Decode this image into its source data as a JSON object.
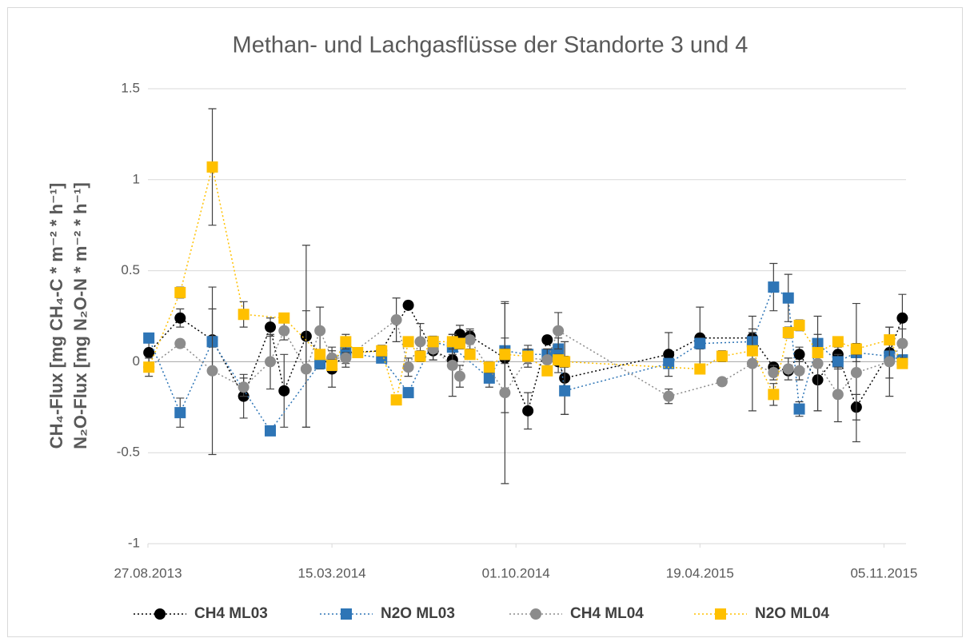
{
  "chart_data": {
    "type": "line",
    "title": "Methan- und Lachgasflüsse der Standorte 3 und 4",
    "y_label_lines": [
      "CH₄-Flux [mg CH₄-C * m⁻² * h⁻¹]",
      "N₂O-Flux [mg N₂O-N * m⁻² * h⁻¹]"
    ],
    "xlim": [
      "2013-08-27",
      "2015-11-29"
    ],
    "xticks": [
      {
        "value": "2013-08-27",
        "label": "27.08.2013"
      },
      {
        "value": "2014-03-15",
        "label": "15.03.2014"
      },
      {
        "value": "2014-10-01",
        "label": "01.10.2014"
      },
      {
        "value": "2015-04-19",
        "label": "19.04.2015"
      },
      {
        "value": "2015-11-05",
        "label": "05.11.2015"
      }
    ],
    "ylim": [
      -1,
      1.5
    ],
    "yticks": [
      -1,
      -0.5,
      0,
      0.5,
      1,
      1.5
    ],
    "grid": true,
    "legend": "bottom",
    "series": [
      {
        "name": "CH4 ML03",
        "color": "#000000",
        "marker": "circle",
        "x": [
          "2013-08-28",
          "2013-10-01",
          "2013-11-05",
          "2013-12-09",
          "2014-01-07",
          "2014-01-22",
          "2014-02-15",
          "2014-03-15",
          "2014-03-30",
          "2014-05-08",
          "2014-06-06",
          "2014-07-03",
          "2014-07-24",
          "2014-08-01",
          "2014-08-12",
          "2014-09-19",
          "2014-10-14",
          "2014-11-04",
          "2014-11-16",
          "2014-11-23",
          "2015-03-16",
          "2015-04-19",
          "2015-06-15",
          "2015-07-08",
          "2015-07-24",
          "2015-08-05",
          "2015-08-25",
          "2015-09-16",
          "2015-10-06",
          "2015-11-11",
          "2015-11-25"
        ],
        "values": [
          0.05,
          0.24,
          0.12,
          -0.19,
          0.19,
          -0.16,
          0.14,
          -0.04,
          0.05,
          0.06,
          0.31,
          0.06,
          0.01,
          0.15,
          0.14,
          0.02,
          -0.27,
          0.12,
          0.0,
          -0.09,
          0.04,
          0.13,
          0.13,
          -0.03,
          -0.05,
          0.04,
          -0.1,
          0.04,
          -0.25,
          0.05,
          0.24
        ],
        "errors": [
          0.1,
          0.05,
          0.17,
          0.12,
          0.05,
          0.2,
          0.5,
          0.1,
          0.08,
          0.03,
          0.02,
          0.05,
          0.05,
          0.05,
          0.04,
          0.3,
          0.1,
          0.02,
          0.06,
          0.2,
          0.12,
          0.17,
          0.05,
          0.02,
          0.02,
          0.04,
          0.17,
          0.04,
          0.07,
          0.14,
          0.13
        ]
      },
      {
        "name": "N2O ML03",
        "color": "#2e75b6",
        "marker": "square",
        "x": [
          "2013-08-28",
          "2013-10-01",
          "2013-11-05",
          "2014-01-07",
          "2014-03-02",
          "2014-03-30",
          "2014-05-08",
          "2014-06-06",
          "2014-07-03",
          "2014-07-24",
          "2014-09-02",
          "2014-09-19",
          "2014-10-14",
          "2014-11-04",
          "2014-11-16",
          "2014-11-23",
          "2015-03-16",
          "2015-04-19",
          "2015-06-15",
          "2015-07-08",
          "2015-07-24",
          "2015-08-05",
          "2015-08-25",
          "2015-09-16",
          "2015-10-06",
          "2015-11-11",
          "2015-11-25"
        ],
        "values": [
          0.13,
          -0.28,
          0.11,
          -0.38,
          -0.01,
          0.05,
          0.02,
          -0.17,
          0.11,
          0.08,
          -0.09,
          0.06,
          0.04,
          0.04,
          0.07,
          -0.16,
          -0.01,
          0.1,
          0.11,
          0.41,
          0.35,
          -0.26,
          0.1,
          0.0,
          0.05,
          0.03,
          0.01
        ],
        "errors": [
          0.02,
          0.08,
          0.03,
          0.01,
          0.03,
          0.02,
          0.01,
          0.02,
          0.03,
          0.04,
          0.05,
          0.07,
          0.05,
          0.03,
          0.06,
          0.13,
          0.02,
          0.03,
          0.05,
          0.13,
          0.13,
          0.04,
          0.05,
          0.04,
          0.05,
          0.03,
          0.02
        ]
      },
      {
        "name": "CH4 ML04",
        "color": "#8c8c8c",
        "marker": "circle",
        "x": [
          "2013-08-28",
          "2013-10-01",
          "2013-11-05",
          "2013-12-09",
          "2014-01-07",
          "2014-01-22",
          "2014-02-15",
          "2014-03-02",
          "2014-03-15",
          "2014-03-30",
          "2014-05-24",
          "2014-06-06",
          "2014-06-19",
          "2014-07-03",
          "2014-07-24",
          "2014-08-01",
          "2014-08-12",
          "2014-09-19",
          "2014-10-14",
          "2014-11-04",
          "2014-11-16",
          "2015-03-16",
          "2015-05-13",
          "2015-06-15",
          "2015-07-08",
          "2015-07-24",
          "2015-08-05",
          "2015-08-25",
          "2015-09-16",
          "2015-10-06",
          "2015-11-11",
          "2015-11-25"
        ],
        "values": [
          -0.03,
          0.1,
          -0.05,
          -0.14,
          0.0,
          0.17,
          -0.04,
          0.17,
          0.02,
          0.02,
          0.23,
          -0.03,
          0.11,
          0.07,
          -0.02,
          -0.08,
          0.12,
          -0.17,
          0.02,
          0.01,
          0.17,
          -0.19,
          -0.11,
          -0.01,
          -0.06,
          -0.04,
          -0.05,
          -0.01,
          -0.18,
          -0.06,
          0.0,
          0.1
        ],
        "errors": [
          0.05,
          0.02,
          0.46,
          0.05,
          0.15,
          0.05,
          0.32,
          0.13,
          0.06,
          0.03,
          0.12,
          0.05,
          0.1,
          0.06,
          0.17,
          0.06,
          0.05,
          0.5,
          0.05,
          0.06,
          0.1,
          0.04,
          0.02,
          0.26,
          0.04,
          0.06,
          0.05,
          0.26,
          0.15,
          0.38,
          0.19,
          0.08
        ]
      },
      {
        "name": "N2O ML04",
        "color": "#ffc000",
        "marker": "square",
        "x": [
          "2013-08-28",
          "2013-10-01",
          "2013-11-05",
          "2013-12-09",
          "2014-01-22",
          "2014-03-02",
          "2014-03-15",
          "2014-03-30",
          "2014-04-12",
          "2014-05-08",
          "2014-05-24",
          "2014-06-06",
          "2014-06-19",
          "2014-07-03",
          "2014-07-24",
          "2014-08-01",
          "2014-08-12",
          "2014-09-02",
          "2014-09-19",
          "2014-10-14",
          "2014-11-04",
          "2014-11-16",
          "2014-11-23",
          "2015-04-19",
          "2015-05-13",
          "2015-06-15",
          "2015-07-08",
          "2015-07-24",
          "2015-08-05",
          "2015-08-25",
          "2015-09-16",
          "2015-10-06",
          "2015-11-11",
          "2015-11-25"
        ],
        "values": [
          -0.03,
          0.38,
          1.07,
          0.26,
          0.24,
          0.04,
          -0.02,
          0.11,
          0.05,
          0.06,
          -0.21,
          0.11,
          0.03,
          0.11,
          0.11,
          0.1,
          0.04,
          -0.03,
          0.04,
          0.03,
          -0.05,
          0.01,
          0.0,
          -0.04,
          0.03,
          0.06,
          -0.18,
          0.16,
          0.2,
          0.05,
          0.11,
          0.07,
          0.12,
          -0.01
        ],
        "errors": [
          0.02,
          0.03,
          0.32,
          0.07,
          0.02,
          0.02,
          0.03,
          0.04,
          0.02,
          0.03,
          0.01,
          0.02,
          0.03,
          0.02,
          0.04,
          0.03,
          0.02,
          0.03,
          0.03,
          0.02,
          0.02,
          0.03,
          0.03,
          0.02,
          0.03,
          0.02,
          0.06,
          0.03,
          0.03,
          0.02,
          0.02,
          0.03,
          0.02,
          0.02
        ]
      }
    ]
  }
}
